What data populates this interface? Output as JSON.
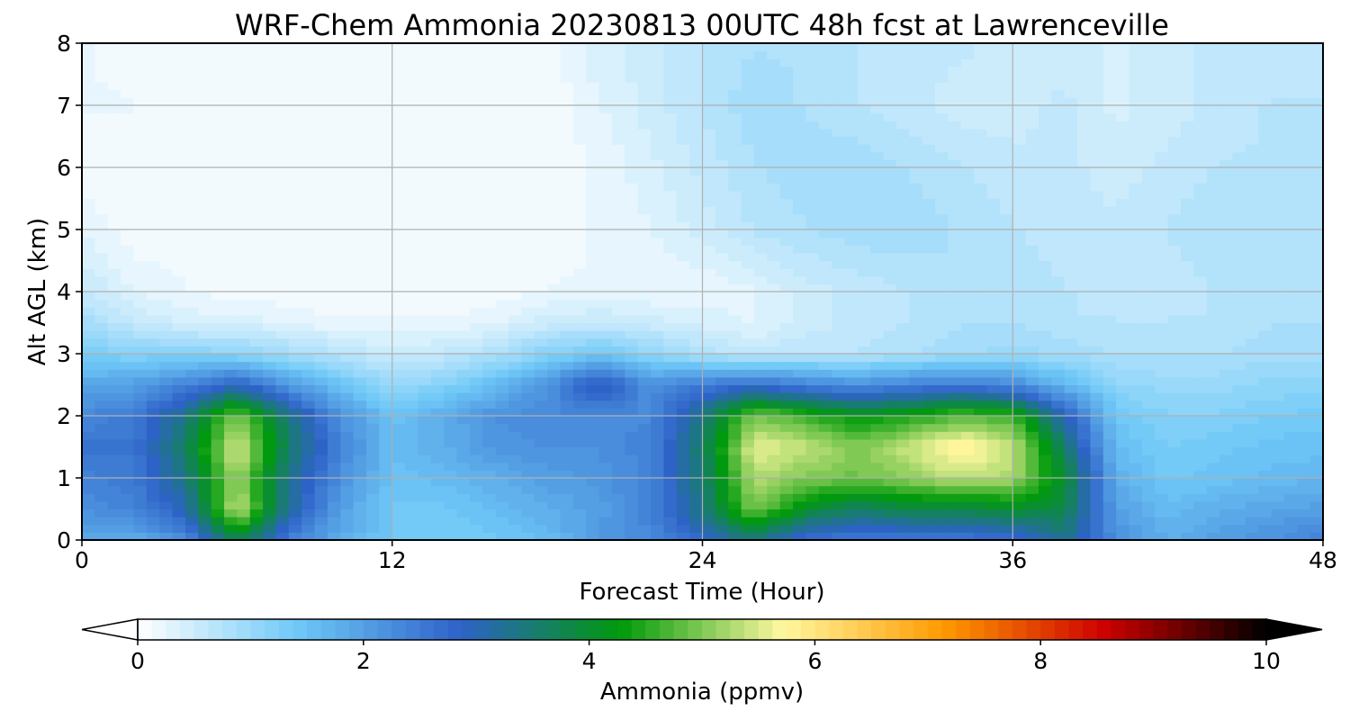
{
  "chart_data": {
    "type": "heatmap",
    "title": "WRF-Chem Ammonia  20230813 00UTC 48h fcst at Lawrenceville",
    "xlabel": "Forecast Time (Hour)",
    "ylabel": "Alt AGL (km)",
    "xlim": [
      0,
      48
    ],
    "ylim": [
      0,
      8
    ],
    "xticks": [
      "0",
      "12",
      "24",
      "36",
      "48"
    ],
    "yticks": [
      "0",
      "1",
      "2",
      "3",
      "4",
      "5",
      "6",
      "7",
      "8"
    ],
    "grid": true,
    "colorbar": {
      "label": "Ammonia  (ppmv)",
      "min": 0,
      "max": 10,
      "ticks": [
        "0",
        "2",
        "4",
        "6",
        "8",
        "10"
      ],
      "extend": "both",
      "orientation": "horizontal",
      "colors": [
        "#ffffff",
        "#6ec8f7",
        "#2e62c8",
        "#009a0a",
        "#fff8a0",
        "#ff9a00",
        "#cc0000",
        "#000000"
      ]
    },
    "x_hours": [
      0,
      2,
      4,
      6,
      8,
      10,
      12,
      14,
      16,
      18,
      20,
      22,
      24,
      26,
      28,
      30,
      32,
      34,
      36,
      38,
      40,
      42,
      44,
      46,
      48
    ],
    "y_km": [
      0,
      0.5,
      1,
      1.5,
      2,
      2.5,
      3,
      3.5,
      4,
      5,
      6,
      7,
      8
    ],
    "z_ppmv": [
      [
        1.8,
        1.8,
        2.2,
        3.8,
        2.4,
        1.8,
        1.4,
        1.3,
        1.4,
        1.6,
        2.1,
        2.3,
        2.8,
        3.4,
        2.6,
        2.4,
        2.5,
        2.5,
        2.6,
        3.3,
        2.2,
        1.8,
        2.0,
        2.2,
        2.4
      ],
      [
        2.2,
        2.4,
        3.0,
        5.4,
        3.2,
        2.0,
        1.4,
        1.4,
        1.6,
        1.8,
        2.0,
        2.4,
        3.4,
        5.0,
        4.0,
        3.6,
        3.8,
        3.8,
        4.0,
        3.8,
        2.0,
        1.6,
        1.8,
        1.9,
        2.0
      ],
      [
        2.4,
        2.5,
        3.4,
        5.2,
        3.3,
        2.2,
        1.5,
        1.6,
        1.8,
        2.0,
        2.1,
        2.4,
        3.5,
        5.3,
        5.0,
        4.9,
        5.1,
        5.4,
        5.2,
        4.0,
        1.8,
        1.4,
        1.5,
        1.6,
        1.7
      ],
      [
        2.6,
        2.6,
        3.6,
        5.6,
        3.6,
        2.4,
        1.6,
        1.8,
        2.1,
        2.2,
        2.2,
        2.4,
        3.6,
        5.6,
        5.4,
        5.0,
        5.4,
        5.9,
        5.4,
        3.6,
        1.6,
        1.3,
        1.4,
        1.5,
        1.5
      ],
      [
        2.3,
        2.5,
        3.4,
        5.0,
        3.4,
        2.2,
        1.5,
        1.8,
        2.2,
        2.3,
        2.3,
        2.3,
        3.4,
        5.0,
        4.6,
        4.2,
        4.4,
        4.8,
        4.6,
        3.0,
        1.4,
        1.2,
        1.2,
        1.3,
        1.4
      ],
      [
        1.9,
        2.0,
        2.4,
        2.9,
        2.1,
        1.5,
        1.0,
        1.2,
        1.6,
        2.2,
        3.1,
        2.2,
        2.5,
        2.7,
        2.4,
        2.2,
        2.4,
        2.5,
        2.3,
        1.7,
        1.1,
        1.0,
        1.0,
        1.1,
        1.1
      ],
      [
        1.3,
        1.2,
        1.2,
        1.1,
        0.9,
        0.7,
        0.5,
        0.6,
        0.8,
        1.2,
        1.4,
        1.1,
        0.8,
        0.6,
        0.7,
        0.7,
        0.8,
        0.9,
        1.0,
        0.9,
        0.8,
        0.8,
        0.8,
        0.9,
        0.9
      ],
      [
        0.9,
        0.6,
        0.4,
        0.4,
        0.3,
        0.2,
        0.2,
        0.2,
        0.3,
        0.5,
        0.6,
        0.5,
        0.4,
        0.3,
        0.5,
        0.6,
        0.7,
        0.8,
        0.8,
        0.7,
        0.7,
        0.7,
        0.7,
        0.8,
        0.8
      ],
      [
        0.6,
        0.3,
        0.2,
        0.1,
        0.1,
        0.1,
        0.1,
        0.1,
        0.1,
        0.2,
        0.2,
        0.2,
        0.2,
        0.3,
        0.5,
        0.6,
        0.7,
        0.8,
        0.8,
        0.7,
        0.6,
        0.6,
        0.7,
        0.7,
        0.8
      ],
      [
        0.3,
        0.1,
        0.1,
        0.1,
        0.1,
        0.1,
        0.1,
        0.1,
        0.1,
        0.1,
        0.2,
        0.3,
        0.5,
        0.7,
        0.8,
        0.9,
        0.9,
        0.8,
        0.7,
        0.6,
        0.6,
        0.7,
        0.8,
        0.8,
        0.8
      ],
      [
        0.1,
        0.1,
        0.1,
        0.1,
        0.1,
        0.1,
        0.1,
        0.1,
        0.1,
        0.1,
        0.2,
        0.4,
        0.6,
        0.8,
        0.9,
        0.9,
        0.8,
        0.7,
        0.6,
        0.6,
        0.5,
        0.6,
        0.7,
        0.7,
        0.8
      ],
      [
        0.2,
        0.2,
        0.1,
        0.1,
        0.1,
        0.1,
        0.1,
        0.1,
        0.1,
        0.1,
        0.3,
        0.5,
        0.7,
        0.9,
        0.8,
        0.7,
        0.6,
        0.5,
        0.5,
        0.6,
        0.4,
        0.5,
        0.6,
        0.7,
        0.7
      ],
      [
        0.2,
        0.1,
        0.1,
        0.1,
        0.1,
        0.1,
        0.1,
        0.1,
        0.1,
        0.1,
        0.4,
        0.5,
        0.7,
        0.8,
        0.8,
        0.7,
        0.6,
        0.6,
        0.5,
        0.5,
        0.4,
        0.5,
        0.6,
        0.6,
        0.6
      ]
    ]
  }
}
